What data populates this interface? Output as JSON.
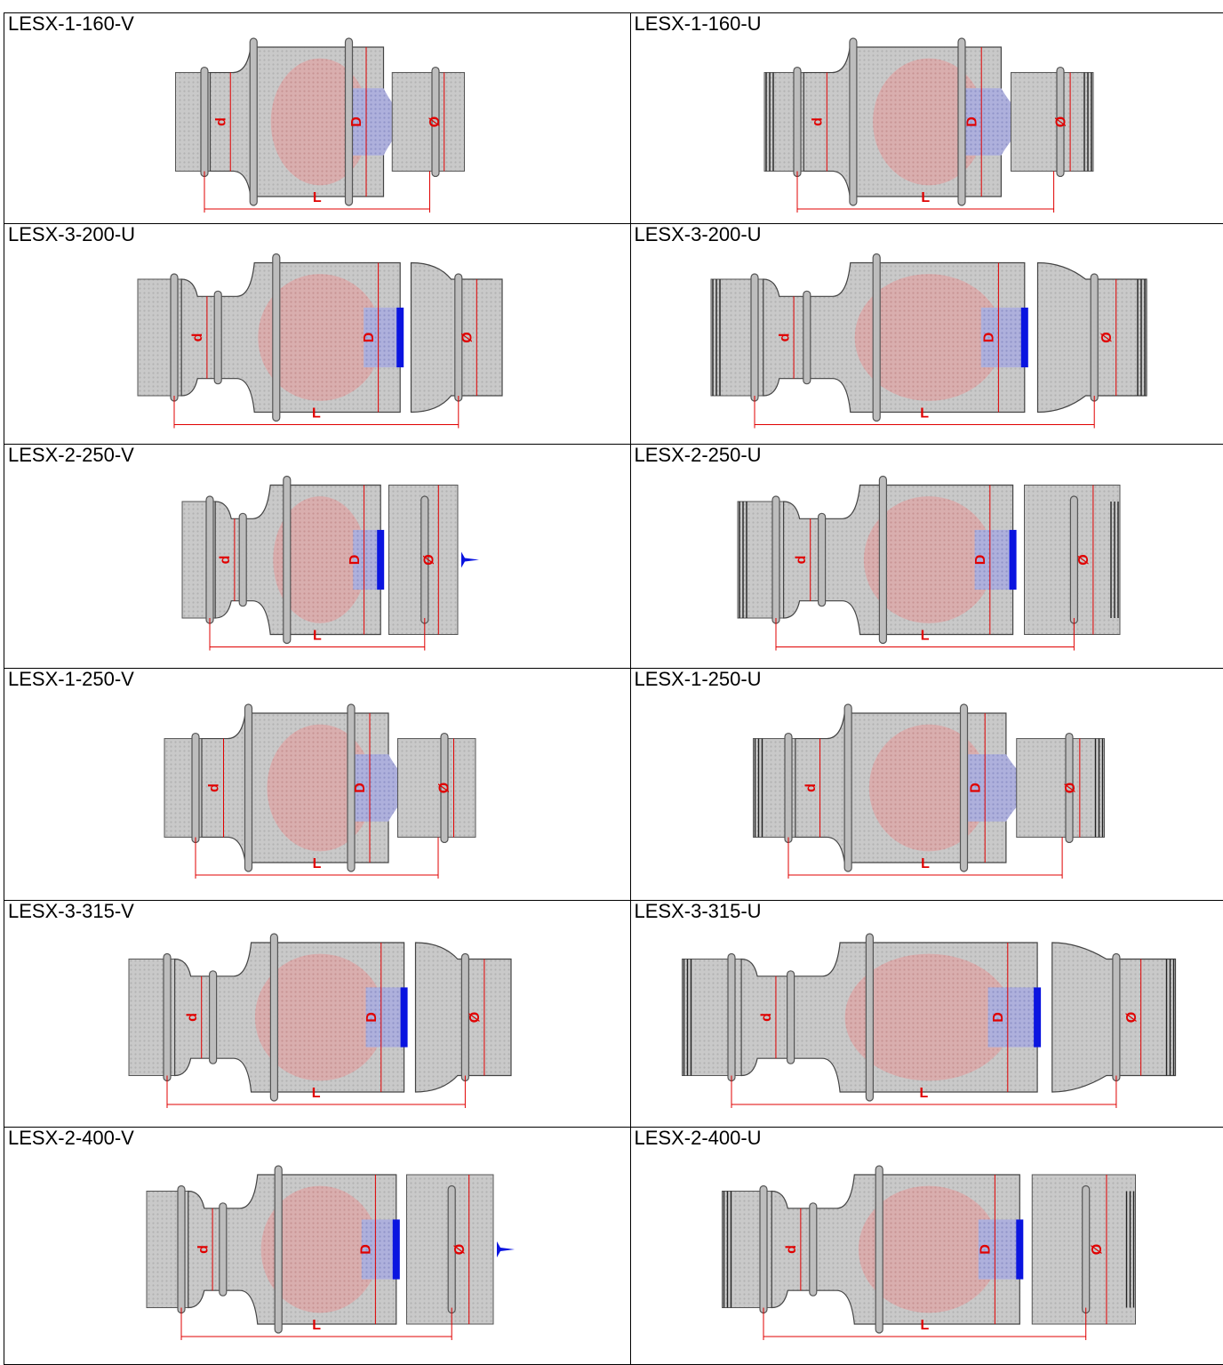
{
  "table": {
    "rows": [
      [
        {
          "title": "LESX-1-160-V",
          "dims": [
            "d",
            "D",
            "Ø",
            "L"
          ]
        },
        {
          "title": "LESX-1-160-U",
          "dims": [
            "d",
            "D",
            "Ø",
            "L"
          ]
        }
      ],
      [
        {
          "title": "LESX-3-200-U",
          "dims": [
            "d",
            "D",
            "Ø",
            "L"
          ]
        },
        {
          "title": "LESX-3-200-U",
          "dims": [
            "d",
            "D",
            "Ø",
            "L"
          ]
        }
      ],
      [
        {
          "title": "LESX-2-250-V",
          "dims": [
            "d",
            "D",
            "Ø",
            "L"
          ]
        },
        {
          "title": "LESX-2-250-U",
          "dims": [
            "d",
            "D",
            "Ø",
            "L"
          ]
        }
      ],
      [
        {
          "title": "LESX-1-250-V",
          "dims": [
            "d",
            "D",
            "Ø",
            "L"
          ]
        },
        {
          "title": "LESX-1-250-U",
          "dims": [
            "d",
            "D",
            "Ø",
            "L"
          ]
        }
      ],
      [
        {
          "title": "LESX-3-315-V",
          "dims": [
            "d",
            "D",
            "Ø",
            "L"
          ]
        },
        {
          "title": "LESX-3-315-U",
          "dims": [
            "d",
            "D",
            "Ø",
            "L"
          ]
        }
      ],
      [
        {
          "title": "LESX-2-400-V",
          "dims": [
            "d",
            "D",
            "Ø",
            "L"
          ]
        },
        {
          "title": "LESX-2-400-U",
          "dims": [
            "d",
            "D",
            "Ø",
            "L"
          ]
        }
      ]
    ]
  }
}
